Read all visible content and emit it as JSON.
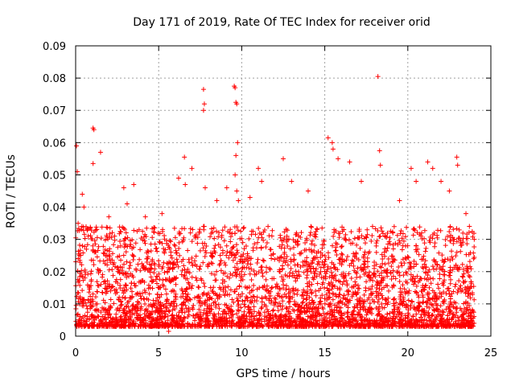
{
  "chart_data": {
    "type": "scatter",
    "title": "Day 171 of 2019, Rate Of TEC Index for receiver orid",
    "xlabel": "GPS time / hours",
    "ylabel": "ROTI / TECUs",
    "xlim": [
      0,
      25
    ],
    "ylim": [
      0,
      0.09
    ],
    "x_ticks": [
      "0",
      "5",
      "10",
      "15",
      "20",
      "25"
    ],
    "y_ticks": [
      "0",
      "0.01",
      "0.02",
      "0.03",
      "0.04",
      "0.05",
      "0.06",
      "0.07",
      "0.08",
      "0.09"
    ],
    "grid": true,
    "marker": "plus",
    "series_color": "#ff0000",
    "coverage_hours": [
      0,
      24
    ],
    "typical_roti_range": [
      0.003,
      0.03
    ],
    "series": [
      {
        "name": "ROTI",
        "x": [
          0.05,
          0.1,
          0.15,
          0.4,
          0.5,
          1.05,
          1.1,
          1.05,
          1.5,
          2.0,
          2.9,
          3.1,
          3.5,
          4.2,
          5.2,
          5.6,
          5.8,
          6.2,
          6.55,
          6.6,
          7.0,
          7.7,
          7.75,
          7.7,
          7.8,
          8.5,
          9.1,
          9.55,
          9.6,
          9.65,
          9.7,
          9.75,
          9.65,
          9.6,
          9.7,
          9.8,
          10.5,
          11.0,
          11.2,
          12.5,
          13.0,
          14.0,
          15.2,
          15.45,
          15.5,
          15.8,
          16.5,
          17.2,
          18.2,
          18.3,
          18.35,
          19.5,
          20.2,
          20.5,
          21.2,
          21.5,
          22.0,
          22.5,
          22.95,
          23.0,
          23.5,
          24.0
        ],
        "y": [
          0.059,
          0.051,
          0.035,
          0.044,
          0.04,
          0.0645,
          0.064,
          0.0535,
          0.057,
          0.037,
          0.046,
          0.041,
          0.047,
          0.037,
          0.038,
          0.0015,
          0.003,
          0.049,
          0.0555,
          0.047,
          0.052,
          0.0765,
          0.072,
          0.07,
          0.046,
          0.042,
          0.046,
          0.0775,
          0.077,
          0.0725,
          0.072,
          0.06,
          0.056,
          0.05,
          0.045,
          0.042,
          0.043,
          0.052,
          0.048,
          0.055,
          0.048,
          0.045,
          0.0615,
          0.06,
          0.058,
          0.055,
          0.054,
          0.048,
          0.0805,
          0.0575,
          0.053,
          0.042,
          0.052,
          0.048,
          0.054,
          0.052,
          0.048,
          0.045,
          0.0555,
          0.053,
          0.038,
          0.03
        ]
      }
    ]
  }
}
